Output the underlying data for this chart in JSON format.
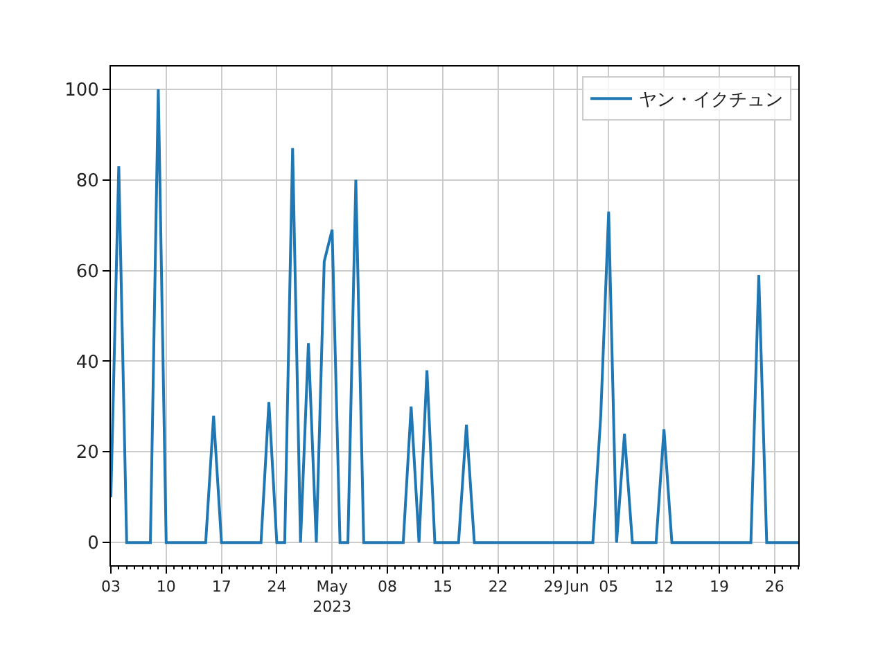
{
  "chart_data": {
    "type": "line",
    "x": [
      "2023-04-03",
      "2023-04-04",
      "2023-04-05",
      "2023-04-06",
      "2023-04-07",
      "2023-04-08",
      "2023-04-09",
      "2023-04-10",
      "2023-04-11",
      "2023-04-12",
      "2023-04-13",
      "2023-04-14",
      "2023-04-15",
      "2023-04-16",
      "2023-04-17",
      "2023-04-18",
      "2023-04-19",
      "2023-04-20",
      "2023-04-21",
      "2023-04-22",
      "2023-04-23",
      "2023-04-24",
      "2023-04-25",
      "2023-04-26",
      "2023-04-27",
      "2023-04-28",
      "2023-04-29",
      "2023-04-30",
      "2023-05-01",
      "2023-05-02",
      "2023-05-03",
      "2023-05-04",
      "2023-05-05",
      "2023-05-06",
      "2023-05-07",
      "2023-05-08",
      "2023-05-09",
      "2023-05-10",
      "2023-05-11",
      "2023-05-12",
      "2023-05-13",
      "2023-05-14",
      "2023-05-15",
      "2023-05-16",
      "2023-05-17",
      "2023-05-18",
      "2023-05-19",
      "2023-05-20",
      "2023-05-21",
      "2023-05-22",
      "2023-05-23",
      "2023-05-24",
      "2023-05-25",
      "2023-05-26",
      "2023-05-27",
      "2023-05-28",
      "2023-05-29",
      "2023-05-30",
      "2023-05-31",
      "2023-06-01",
      "2023-06-02",
      "2023-06-03",
      "2023-06-04",
      "2023-06-05",
      "2023-06-06",
      "2023-06-07",
      "2023-06-08",
      "2023-06-09",
      "2023-06-10",
      "2023-06-11",
      "2023-06-12",
      "2023-06-13",
      "2023-06-14",
      "2023-06-15",
      "2023-06-16",
      "2023-06-17",
      "2023-06-18",
      "2023-06-19",
      "2023-06-20",
      "2023-06-21",
      "2023-06-22",
      "2023-06-23",
      "2023-06-24",
      "2023-06-25",
      "2023-06-26",
      "2023-06-27",
      "2023-06-28",
      "2023-06-29"
    ],
    "series": [
      {
        "name": "ヤン・イクチュン",
        "color": "#1f77b4",
        "values": [
          10,
          83,
          0,
          0,
          0,
          0,
          100,
          0,
          0,
          0,
          0,
          0,
          0,
          28,
          0,
          0,
          0,
          0,
          0,
          0,
          31,
          0,
          0,
          87,
          0,
          44,
          0,
          62,
          69,
          0,
          0,
          80,
          0,
          0,
          0,
          0,
          0,
          0,
          30,
          0,
          38,
          0,
          0,
          0,
          0,
          26,
          0,
          0,
          0,
          0,
          0,
          0,
          0,
          0,
          0,
          0,
          0,
          0,
          0,
          0,
          0,
          0,
          28,
          73,
          0,
          24,
          0,
          0,
          0,
          0,
          25,
          0,
          0,
          0,
          0,
          0,
          0,
          0,
          0,
          0,
          0,
          0,
          59,
          0,
          0,
          0,
          0,
          0
        ]
      }
    ],
    "xlim": [
      "2023-04-03",
      "2023-06-29"
    ],
    "xticks": [
      {
        "value": "2023-04-03",
        "label": "03"
      },
      {
        "value": "2023-04-10",
        "label": "10"
      },
      {
        "value": "2023-04-17",
        "label": "17"
      },
      {
        "value": "2023-04-24",
        "label": "24"
      },
      {
        "value": "2023-05-01",
        "label": "May\n2023"
      },
      {
        "value": "2023-05-08",
        "label": "08"
      },
      {
        "value": "2023-05-15",
        "label": "15"
      },
      {
        "value": "2023-05-22",
        "label": "22"
      },
      {
        "value": "2023-05-29",
        "label": "29"
      },
      {
        "value": "2023-06-01",
        "label": "Jun"
      },
      {
        "value": "2023-06-05",
        "label": "05"
      },
      {
        "value": "2023-06-12",
        "label": "12"
      },
      {
        "value": "2023-06-19",
        "label": "19"
      },
      {
        "value": "2023-06-26",
        "label": "26"
      }
    ],
    "ylim": [
      -5,
      105
    ],
    "yticks": [
      0,
      20,
      40,
      60,
      80,
      100
    ],
    "grid": true,
    "legend": "top right",
    "line_style": "solid",
    "marker": "none"
  }
}
